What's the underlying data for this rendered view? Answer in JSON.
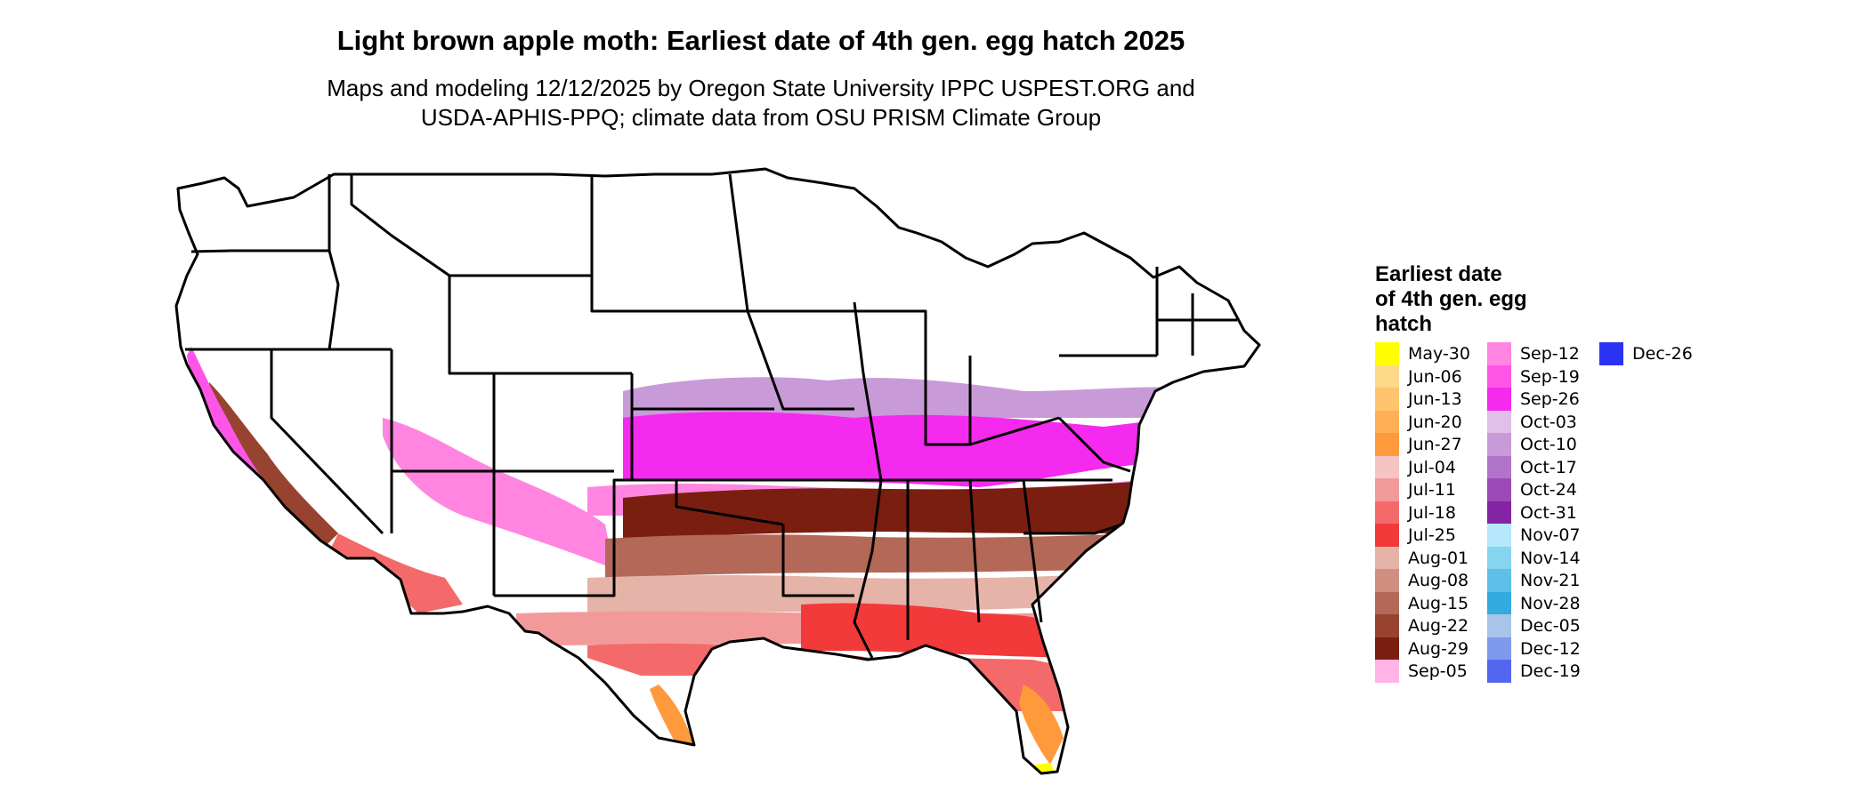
{
  "title": "Light brown apple moth: Earliest date of 4th gen. egg hatch 2025",
  "subtitle_line1": "Maps and modeling 12/12/2025 by Oregon State University IPPC USPEST.ORG and",
  "subtitle_line2": "USDA-APHIS-PPQ; climate data from OSU PRISM Climate Group",
  "legend": {
    "title_lines": [
      "Earliest date",
      "of 4th gen. egg",
      "hatch"
    ],
    "items": [
      {
        "label": "May-30",
        "color": "#ffff00"
      },
      {
        "label": "Jun-06",
        "color": "#ffd98a"
      },
      {
        "label": "Jun-13",
        "color": "#ffc46e"
      },
      {
        "label": "Jun-20",
        "color": "#ffaf55"
      },
      {
        "label": "Jun-27",
        "color": "#ff9a3c"
      },
      {
        "label": "Jul-04",
        "color": "#f7c4c4"
      },
      {
        "label": "Jul-11",
        "color": "#f29a9a"
      },
      {
        "label": "Jul-18",
        "color": "#f46a6a"
      },
      {
        "label": "Jul-25",
        "color": "#f23a3a"
      },
      {
        "label": "Aug-01",
        "color": "#e6b3a8"
      },
      {
        "label": "Aug-08",
        "color": "#cf8f80"
      },
      {
        "label": "Aug-15",
        "color": "#b46857"
      },
      {
        "label": "Aug-22",
        "color": "#984230"
      },
      {
        "label": "Aug-29",
        "color": "#7a1e10"
      },
      {
        "label": "Sep-05",
        "color": "#ffb3e6"
      },
      {
        "label": "Sep-12",
        "color": "#ff85e0"
      },
      {
        "label": "Sep-19",
        "color": "#ff55e6"
      },
      {
        "label": "Sep-26",
        "color": "#f42aee"
      },
      {
        "label": "Oct-03",
        "color": "#e0c0e8"
      },
      {
        "label": "Oct-10",
        "color": "#c99ad8"
      },
      {
        "label": "Oct-17",
        "color": "#b074c8"
      },
      {
        "label": "Oct-24",
        "color": "#9c4ab8"
      },
      {
        "label": "Oct-31",
        "color": "#8424a4"
      },
      {
        "label": "Nov-07",
        "color": "#b5e8fa"
      },
      {
        "label": "Nov-14",
        "color": "#85d4f0"
      },
      {
        "label": "Nov-21",
        "color": "#5ec0e8"
      },
      {
        "label": "Nov-28",
        "color": "#33aae0"
      },
      {
        "label": "Dec-05",
        "color": "#a8c4e8"
      },
      {
        "label": "Dec-12",
        "color": "#7f9aec"
      },
      {
        "label": "Dec-19",
        "color": "#5566ee"
      },
      {
        "label": "Dec-26",
        "color": "#2a33f2"
      }
    ]
  },
  "map": {
    "region": "Contiguous United States",
    "unshaded_color": "#ffffff",
    "border_color": "#000000"
  }
}
